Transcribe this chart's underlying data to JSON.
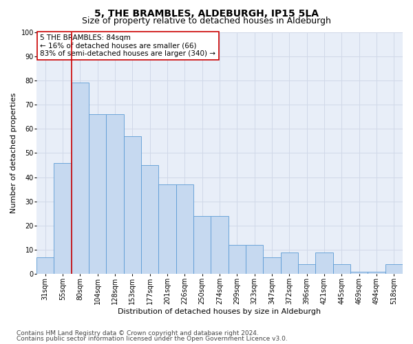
{
  "title": "5, THE BRAMBLES, ALDEBURGH, IP15 5LA",
  "subtitle": "Size of property relative to detached houses in Aldeburgh",
  "xlabel": "Distribution of detached houses by size in Aldeburgh",
  "ylabel": "Number of detached properties",
  "categories": [
    "31sqm",
    "55sqm",
    "80sqm",
    "104sqm",
    "128sqm",
    "153sqm",
    "177sqm",
    "201sqm",
    "226sqm",
    "250sqm",
    "274sqm",
    "299sqm",
    "323sqm",
    "347sqm",
    "372sqm",
    "396sqm",
    "421sqm",
    "445sqm",
    "469sqm",
    "494sqm",
    "518sqm"
  ],
  "values": [
    7,
    46,
    79,
    66,
    66,
    57,
    45,
    37,
    37,
    24,
    24,
    12,
    12,
    7,
    9,
    4,
    9,
    4,
    1,
    1,
    4
  ],
  "bar_color": "#c6d9f0",
  "bar_edge_color": "#5b9bd5",
  "subject_line_color": "#cc0000",
  "annotation_text": "5 THE BRAMBLES: 84sqm\n← 16% of detached houses are smaller (66)\n83% of semi-detached houses are larger (340) →",
  "annotation_box_color": "#ffffff",
  "annotation_box_edge": "#cc0000",
  "ylim": [
    0,
    100
  ],
  "yticks": [
    0,
    10,
    20,
    30,
    40,
    50,
    60,
    70,
    80,
    90,
    100
  ],
  "grid_color": "#d0d8e8",
  "bg_color": "#e8eef8",
  "footer1": "Contains HM Land Registry data © Crown copyright and database right 2024.",
  "footer2": "Contains public sector information licensed under the Open Government Licence v3.0.",
  "title_fontsize": 10,
  "subtitle_fontsize": 9,
  "axis_label_fontsize": 8,
  "tick_fontsize": 7,
  "annotation_fontsize": 7.5,
  "footer_fontsize": 6.5
}
